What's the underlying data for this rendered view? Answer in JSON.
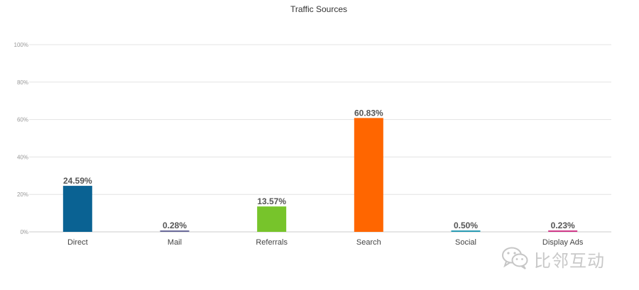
{
  "chart_data": {
    "type": "bar",
    "title": "Traffic Sources",
    "categories": [
      "Direct",
      "Mail",
      "Referrals",
      "Search",
      "Social",
      "Display Ads"
    ],
    "values": [
      24.59,
      0.28,
      13.57,
      60.83,
      0.5,
      0.23
    ],
    "data_labels": [
      "24.59%",
      "0.28%",
      "13.57%",
      "60.83%",
      "0.50%",
      "0.23%"
    ],
    "colors": [
      "#0a6293",
      "#6b6b9a",
      "#77c42b",
      "#ff6600",
      "#2a9db5",
      "#d13a8a"
    ],
    "ylim": [
      0,
      100
    ],
    "yticks": [
      0,
      20,
      40,
      60,
      80,
      100
    ],
    "ytick_labels": [
      "0%",
      "20%",
      "40%",
      "60%",
      "80%",
      "100%"
    ],
    "grid": true,
    "legend": "none"
  },
  "watermark": {
    "text": "比邻互动",
    "icon": "wechat-icon"
  }
}
